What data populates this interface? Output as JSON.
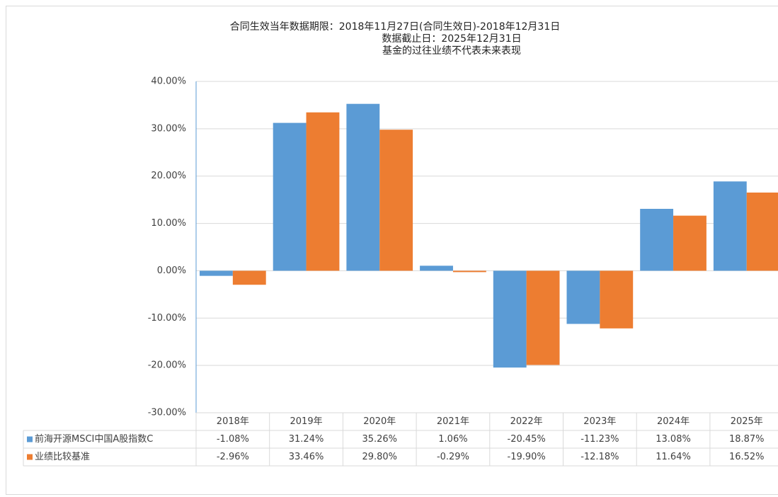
{
  "chart_data": {
    "type": "bar",
    "title_lines": [
      "合同生效当年数据期限：2018年11月27日(合同生效日)-2018年12月31日",
      "数据截止日：2025年12月31日",
      "基金的过往业绩不代表未来表现"
    ],
    "categories": [
      "2018年",
      "2019年",
      "2020年",
      "2021年",
      "2022年",
      "2023年",
      "2024年",
      "2025年"
    ],
    "series": [
      {
        "name": "前海开源MSCI中国A股指数C",
        "color": "#5b9bd5",
        "values": [
          -1.08,
          31.24,
          35.26,
          1.06,
          -20.45,
          -11.23,
          13.08,
          18.87
        ],
        "value_labels": [
          "-1.08%",
          "31.24%",
          "35.26%",
          "1.06%",
          "-20.45%",
          "-11.23%",
          "13.08%",
          "18.87%"
        ]
      },
      {
        "name": "业绩比较基准",
        "color": "#ed7d31",
        "values": [
          -2.96,
          33.46,
          29.8,
          -0.29,
          -19.9,
          -12.18,
          11.64,
          16.52
        ],
        "value_labels": [
          "-2.96%",
          "33.46%",
          "29.80%",
          "-0.29%",
          "-19.90%",
          "-12.18%",
          "11.64%",
          "16.52%"
        ]
      }
    ],
    "ylim": [
      -30,
      40
    ],
    "yticks": [
      {
        "value": -30,
        "label": "-30.00%"
      },
      {
        "value": -20,
        "label": "-20.00%"
      },
      {
        "value": -10,
        "label": "-10.00%"
      },
      {
        "value": 0,
        "label": "0.00%"
      },
      {
        "value": 10,
        "label": "10.00%"
      },
      {
        "value": 20,
        "label": "20.00%"
      },
      {
        "value": 30,
        "label": "30.00%"
      },
      {
        "value": 40,
        "label": "40.00%"
      }
    ],
    "grid": true
  }
}
